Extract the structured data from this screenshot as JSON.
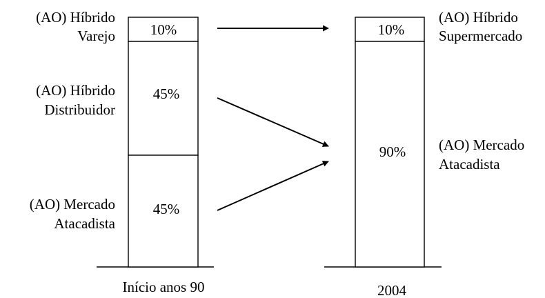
{
  "colors": {
    "ink": "#000000",
    "background": "#ffffff"
  },
  "bars": [
    {
      "id": "left",
      "label": "Início anos 90",
      "segments": [
        {
          "value": 10,
          "text": "10%",
          "category": [
            "(AO) Híbrido",
            "Varejo"
          ]
        },
        {
          "value": 45,
          "text": "45%",
          "category": [
            "(AO) Híbrido",
            "Distribuidor"
          ]
        },
        {
          "value": 45,
          "text": "45%",
          "category": [
            "(AO) Mercado",
            "Atacadista"
          ]
        }
      ]
    },
    {
      "id": "right",
      "label": "2004",
      "segments": [
        {
          "value": 10,
          "text": "10%",
          "category": [
            "(AO) Híbrido",
            "Supermercado"
          ]
        },
        {
          "value": 90,
          "text": "90%",
          "category": [
            "(AO) Mercado",
            "Atacadista"
          ]
        }
      ]
    }
  ],
  "flows": [
    {
      "from": "left.0",
      "to": "right.0"
    },
    {
      "from": "left.1",
      "to": "right.1"
    },
    {
      "from": "left.2",
      "to": "right.1"
    }
  ]
}
